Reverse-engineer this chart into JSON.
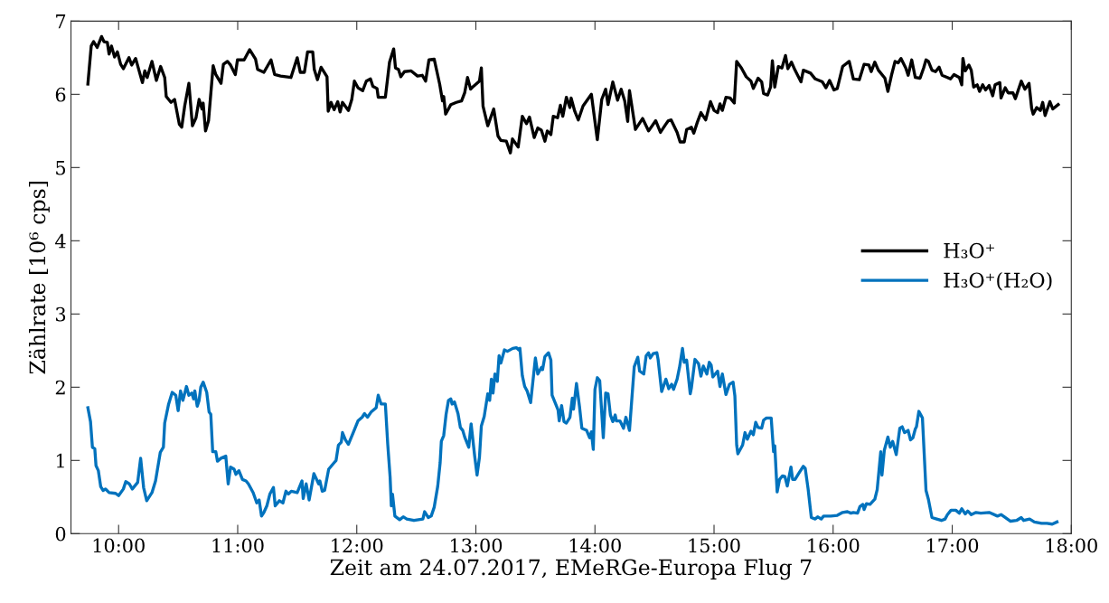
{
  "chart_data": {
    "type": "line",
    "xlabel": "Zeit am 24.07.2017, EMeRGe-Europa Flug 7",
    "ylabel": "Zählrate [10⁶ cps]",
    "xlim": [
      9.6,
      18.0
    ],
    "ylim": [
      0,
      7
    ],
    "xticks": [
      {
        "value": 10,
        "label": "10:00"
      },
      {
        "value": 11,
        "label": "11:00"
      },
      {
        "value": 12,
        "label": "12:00"
      },
      {
        "value": 13,
        "label": "13:00"
      },
      {
        "value": 14,
        "label": "14:00"
      },
      {
        "value": 15,
        "label": "15:00"
      },
      {
        "value": 16,
        "label": "16:00"
      },
      {
        "value": 17,
        "label": "17:00"
      },
      {
        "value": 18,
        "label": "18:00"
      }
    ],
    "yticks": [
      0,
      1,
      2,
      3,
      4,
      5,
      6,
      7
    ],
    "grid": false,
    "legend": "right",
    "marker": "none",
    "line_style": "solid",
    "series": [
      {
        "name": "H₃O⁺",
        "color": "#000000",
        "x": [
          9.742,
          9.77,
          9.79,
          9.82,
          9.857,
          9.877,
          9.905,
          9.92,
          9.94,
          9.966,
          9.99,
          10.017,
          10.04,
          10.087,
          10.11,
          10.143,
          10.2,
          10.22,
          10.24,
          10.28,
          10.317,
          10.353,
          10.387,
          10.4,
          10.44,
          10.47,
          10.51,
          10.53,
          10.555,
          10.59,
          10.62,
          10.65,
          10.676,
          10.7,
          10.71,
          10.73,
          10.755,
          10.794,
          10.816,
          10.86,
          10.88,
          10.914,
          10.94,
          10.98,
          10.998,
          11.054,
          11.1,
          11.15,
          11.167,
          11.22,
          11.28,
          11.31,
          11.36,
          11.447,
          11.5,
          11.526,
          11.56,
          11.587,
          11.63,
          11.643,
          11.67,
          11.7,
          11.75,
          11.76,
          11.784,
          11.81,
          11.84,
          11.86,
          11.88,
          11.93,
          11.958,
          11.98,
          12.01,
          12.05,
          12.08,
          12.115,
          12.135,
          12.17,
          12.18,
          12.24,
          12.275,
          12.31,
          12.325,
          12.35,
          12.37,
          12.4,
          12.457,
          12.51,
          12.55,
          12.578,
          12.606,
          12.65,
          12.696,
          12.72,
          12.73,
          12.746,
          12.79,
          12.836,
          12.88,
          12.906,
          12.93,
          12.956,
          12.98,
          13.03,
          13.046,
          13.06,
          13.1,
          13.15,
          13.186,
          13.21,
          13.256,
          13.29,
          13.307,
          13.355,
          13.39,
          13.425,
          13.45,
          13.49,
          13.52,
          13.55,
          13.58,
          13.6,
          13.63,
          13.65,
          13.686,
          13.71,
          13.73,
          13.76,
          13.79,
          13.8,
          13.83,
          13.86,
          13.9,
          13.97,
          14.02,
          14.057,
          14.09,
          14.11,
          14.15,
          14.19,
          14.22,
          14.25,
          14.275,
          14.29,
          14.34,
          14.4,
          14.45,
          14.51,
          14.55,
          14.59,
          14.616,
          14.64,
          14.69,
          14.715,
          14.75,
          14.77,
          14.81,
          14.83,
          14.86,
          14.89,
          14.93,
          14.97,
          15.0,
          15.03,
          15.05,
          15.07,
          15.1,
          15.135,
          15.17,
          15.19,
          15.23,
          15.27,
          15.31,
          15.33,
          15.37,
          15.4,
          15.416,
          15.45,
          15.475,
          15.49,
          15.51,
          15.54,
          15.57,
          15.6,
          15.62,
          15.65,
          15.68,
          15.73,
          15.75,
          15.81,
          15.85,
          15.91,
          15.94,
          15.97,
          16.007,
          16.035,
          16.08,
          16.135,
          16.17,
          16.22,
          16.26,
          16.3,
          16.32,
          16.35,
          16.38,
          16.435,
          16.46,
          16.49,
          16.52,
          16.546,
          16.57,
          16.61,
          16.63,
          16.66,
          16.69,
          16.73,
          16.76,
          16.78,
          16.8,
          16.83,
          16.86,
          16.89,
          16.915,
          16.96,
          16.986,
          17.015,
          17.06,
          17.08,
          17.09,
          17.11,
          17.14,
          17.16,
          17.18,
          17.21,
          17.23,
          17.256,
          17.28,
          17.31,
          17.34,
          17.36,
          17.4,
          17.41,
          17.445,
          17.47,
          17.51,
          17.53,
          17.58,
          17.61,
          17.645,
          17.667,
          17.68,
          17.71,
          17.74,
          17.76,
          17.78,
          17.82,
          17.845,
          17.89
        ],
        "values": [
          6.14,
          6.66,
          6.72,
          6.64,
          6.79,
          6.72,
          6.71,
          6.55,
          6.66,
          6.51,
          6.58,
          6.41,
          6.35,
          6.5,
          6.4,
          6.49,
          6.16,
          6.32,
          6.23,
          6.45,
          6.19,
          6.38,
          6.23,
          5.97,
          5.89,
          5.93,
          5.59,
          5.55,
          5.84,
          6.15,
          5.57,
          5.68,
          5.93,
          5.8,
          5.88,
          5.5,
          5.64,
          6.39,
          6.27,
          6.15,
          6.41,
          6.45,
          6.4,
          6.27,
          6.47,
          6.47,
          6.61,
          6.48,
          6.34,
          6.3,
          6.47,
          6.27,
          6.25,
          6.23,
          6.5,
          6.3,
          6.3,
          6.58,
          6.58,
          6.34,
          6.2,
          6.37,
          6.24,
          5.77,
          5.89,
          5.79,
          5.9,
          5.76,
          5.89,
          5.78,
          5.93,
          6.18,
          6.09,
          6.05,
          6.18,
          6.21,
          6.11,
          6.08,
          5.96,
          5.96,
          6.44,
          6.62,
          6.36,
          6.34,
          6.24,
          6.31,
          6.32,
          6.25,
          6.26,
          6.18,
          6.47,
          6.48,
          6.14,
          5.91,
          5.97,
          5.73,
          5.86,
          5.89,
          5.91,
          6.02,
          6.23,
          6.07,
          6.11,
          6.18,
          6.36,
          5.84,
          5.57,
          5.8,
          5.43,
          5.37,
          5.36,
          5.2,
          5.39,
          5.28,
          5.7,
          5.6,
          5.69,
          5.41,
          5.54,
          5.51,
          5.36,
          5.5,
          5.45,
          5.7,
          5.68,
          5.85,
          5.7,
          5.96,
          5.82,
          5.95,
          5.77,
          5.65,
          5.84,
          6.0,
          5.38,
          5.93,
          6.07,
          5.86,
          6.17,
          5.92,
          6.07,
          5.91,
          5.63,
          6.05,
          5.52,
          5.67,
          5.5,
          5.64,
          5.48,
          5.58,
          5.64,
          5.65,
          5.48,
          5.35,
          5.35,
          5.52,
          5.55,
          5.47,
          5.62,
          5.75,
          5.65,
          5.9,
          5.78,
          5.75,
          5.87,
          5.78,
          5.96,
          5.95,
          5.88,
          6.45,
          6.36,
          6.24,
          6.18,
          6.08,
          6.22,
          6.17,
          6.01,
          5.99,
          6.1,
          6.46,
          6.1,
          6.38,
          6.36,
          6.53,
          6.35,
          6.44,
          6.33,
          6.17,
          6.33,
          6.29,
          6.21,
          6.17,
          6.09,
          6.19,
          6.06,
          6.08,
          6.38,
          6.45,
          6.21,
          6.2,
          6.41,
          6.4,
          6.31,
          6.44,
          6.33,
          6.22,
          6.04,
          6.26,
          6.45,
          6.43,
          6.49,
          6.36,
          6.26,
          6.47,
          6.23,
          6.22,
          6.36,
          6.47,
          6.45,
          6.33,
          6.31,
          6.37,
          6.26,
          6.23,
          6.21,
          6.27,
          6.23,
          6.13,
          6.49,
          6.32,
          6.4,
          6.33,
          6.1,
          6.13,
          6.04,
          6.13,
          6.06,
          6.12,
          5.98,
          6.13,
          6.16,
          5.95,
          6.09,
          6.02,
          6.02,
          5.94,
          6.18,
          6.07,
          6.15,
          5.81,
          5.73,
          5.82,
          5.78,
          5.89,
          5.71,
          5.9,
          5.8,
          5.86
        ]
      },
      {
        "name": "H₃O⁺(H₂O)",
        "color": "#0072bd",
        "x": [
          9.742,
          9.764,
          9.78,
          9.8,
          9.81,
          9.83,
          9.85,
          9.87,
          9.89,
          9.92,
          9.975,
          10.0,
          10.04,
          10.06,
          10.09,
          10.115,
          10.16,
          10.185,
          10.21,
          10.236,
          10.28,
          10.31,
          10.35,
          10.376,
          10.387,
          10.42,
          10.45,
          10.48,
          10.5,
          10.52,
          10.54,
          10.57,
          10.59,
          10.614,
          10.63,
          10.64,
          10.66,
          10.676,
          10.69,
          10.71,
          10.74,
          10.76,
          10.774,
          10.79,
          10.816,
          10.83,
          10.86,
          10.9,
          10.92,
          10.94,
          10.97,
          10.985,
          11.01,
          11.04,
          11.07,
          11.09,
          11.13,
          11.16,
          11.18,
          11.2,
          11.22,
          11.245,
          11.27,
          11.3,
          11.315,
          11.35,
          11.38,
          11.405,
          11.425,
          11.45,
          11.5,
          11.54,
          11.55,
          11.575,
          11.6,
          11.64,
          11.68,
          11.69,
          11.71,
          11.73,
          11.764,
          11.81,
          11.826,
          11.846,
          11.87,
          11.88,
          11.905,
          11.93,
          11.97,
          12.01,
          12.045,
          12.065,
          12.09,
          12.12,
          12.163,
          12.18,
          12.205,
          12.24,
          12.26,
          12.28,
          12.29,
          12.3,
          12.32,
          12.36,
          12.39,
          12.42,
          12.48,
          12.555,
          12.57,
          12.6,
          12.625,
          12.65,
          12.68,
          12.7,
          12.71,
          12.73,
          12.75,
          12.77,
          12.79,
          12.8,
          12.82,
          12.85,
          12.87,
          12.89,
          12.906,
          12.94,
          12.96,
          12.99,
          13.01,
          13.03,
          13.046,
          13.07,
          13.1,
          13.116,
          13.13,
          13.144,
          13.16,
          13.18,
          13.195,
          13.21,
          13.24,
          13.265,
          13.31,
          13.34,
          13.36,
          13.37,
          13.39,
          13.41,
          13.43,
          13.46,
          13.5,
          13.52,
          13.55,
          13.56,
          13.58,
          13.61,
          13.63,
          13.64,
          13.67,
          13.69,
          13.7,
          13.72,
          13.74,
          13.76,
          13.79,
          13.81,
          13.82,
          13.845,
          13.87,
          13.89,
          13.93,
          13.955,
          13.97,
          13.986,
          14.0,
          14.02,
          14.04,
          14.07,
          14.09,
          14.11,
          14.13,
          14.15,
          14.17,
          14.18,
          14.21,
          14.24,
          14.26,
          14.29,
          14.33,
          14.36,
          14.375,
          14.41,
          14.43,
          14.45,
          14.465,
          14.49,
          14.52,
          14.53,
          14.56,
          14.596,
          14.62,
          14.644,
          14.66,
          14.69,
          14.71,
          14.735,
          14.75,
          14.77,
          14.8,
          14.81,
          14.84,
          14.87,
          14.89,
          14.91,
          14.94,
          14.96,
          14.976,
          14.99,
          15.03,
          15.05,
          15.07,
          15.1,
          15.13,
          15.16,
          15.175,
          15.19,
          15.2,
          15.24,
          15.26,
          15.28,
          15.31,
          15.33,
          15.35,
          15.37,
          15.4,
          15.416,
          15.44,
          15.48,
          15.5,
          15.51,
          15.53,
          15.55,
          15.575,
          15.595,
          15.615,
          15.646,
          15.66,
          15.68,
          15.71,
          15.75,
          15.766,
          15.79,
          15.817,
          15.85,
          15.87,
          15.9,
          15.92,
          15.98,
          16.035,
          16.08,
          16.12,
          16.15,
          16.17,
          16.205,
          16.225,
          16.25,
          16.26,
          16.28,
          16.31,
          16.35,
          16.37,
          16.385,
          16.4,
          16.41,
          16.43,
          16.46,
          16.48,
          16.5,
          16.53,
          16.56,
          16.58,
          16.6,
          16.63,
          16.65,
          16.67,
          16.69,
          16.7,
          16.72,
          16.74,
          16.75,
          16.78,
          16.8,
          16.83,
          16.87,
          16.91,
          16.94,
          16.96,
          16.99,
          17.03,
          17.06,
          17.08,
          17.11,
          17.13,
          17.16,
          17.2,
          17.24,
          17.31,
          17.38,
          17.41,
          17.445,
          17.49,
          17.54,
          17.58,
          17.6,
          17.65,
          17.69,
          17.75,
          17.795,
          17.84,
          17.88
        ],
        "values": [
          1.72,
          1.53,
          1.18,
          1.16,
          0.93,
          0.86,
          0.64,
          0.59,
          0.61,
          0.56,
          0.55,
          0.52,
          0.61,
          0.71,
          0.68,
          0.61,
          0.7,
          1.03,
          0.63,
          0.45,
          0.56,
          0.72,
          1.11,
          1.18,
          1.51,
          1.77,
          1.93,
          1.89,
          1.68,
          1.95,
          1.82,
          2.01,
          1.89,
          1.92,
          1.84,
          1.95,
          1.74,
          1.82,
          2.0,
          2.07,
          1.93,
          1.66,
          1.63,
          1.12,
          1.12,
          0.99,
          1.03,
          1.06,
          0.68,
          0.91,
          0.88,
          0.81,
          0.86,
          0.74,
          0.72,
          0.68,
          0.56,
          0.42,
          0.46,
          0.24,
          0.29,
          0.38,
          0.54,
          0.63,
          0.38,
          0.45,
          0.42,
          0.58,
          0.54,
          0.58,
          0.56,
          0.72,
          0.48,
          0.68,
          0.46,
          0.82,
          0.68,
          0.72,
          0.58,
          0.59,
          0.88,
          0.97,
          1.0,
          1.21,
          1.25,
          1.38,
          1.28,
          1.22,
          1.38,
          1.54,
          1.59,
          1.64,
          1.59,
          1.66,
          1.72,
          1.89,
          1.77,
          1.77,
          1.22,
          0.77,
          0.38,
          0.54,
          0.24,
          0.19,
          0.23,
          0.2,
          0.18,
          0.2,
          0.3,
          0.22,
          0.24,
          0.36,
          0.65,
          0.97,
          1.26,
          1.34,
          1.63,
          1.82,
          1.84,
          1.77,
          1.8,
          1.64,
          1.45,
          1.41,
          1.32,
          1.18,
          1.5,
          1.06,
          0.8,
          1.04,
          1.47,
          1.6,
          1.91,
          1.82,
          2.11,
          1.92,
          2.18,
          2.08,
          2.43,
          2.33,
          2.51,
          2.49,
          2.53,
          2.54,
          2.51,
          2.53,
          2.16,
          2.01,
          1.95,
          1.79,
          2.4,
          2.18,
          2.27,
          2.24,
          2.42,
          2.47,
          2.37,
          1.89,
          1.77,
          1.69,
          1.54,
          1.75,
          1.53,
          1.51,
          1.59,
          1.85,
          1.7,
          2.05,
          1.74,
          1.44,
          1.41,
          1.31,
          1.39,
          1.15,
          1.97,
          2.13,
          2.09,
          1.31,
          1.92,
          1.91,
          1.62,
          1.53,
          1.62,
          1.54,
          1.54,
          1.44,
          1.59,
          1.41,
          2.28,
          2.41,
          2.22,
          2.18,
          2.43,
          2.47,
          2.4,
          2.46,
          2.47,
          2.38,
          1.94,
          2.11,
          1.98,
          2.04,
          1.97,
          2.11,
          2.27,
          2.53,
          2.34,
          2.37,
          1.91,
          1.99,
          2.38,
          2.32,
          2.15,
          2.29,
          2.18,
          2.34,
          2.3,
          2.14,
          2.22,
          2.01,
          2.18,
          1.9,
          2.04,
          2.07,
          1.88,
          1.21,
          1.09,
          1.21,
          1.38,
          1.29,
          1.4,
          1.35,
          1.52,
          1.45,
          1.44,
          1.55,
          1.58,
          1.58,
          1.12,
          1.2,
          0.57,
          0.74,
          0.79,
          0.78,
          0.65,
          0.91,
          0.74,
          0.74,
          0.82,
          0.92,
          0.89,
          0.61,
          0.22,
          0.2,
          0.23,
          0.2,
          0.24,
          0.24,
          0.25,
          0.29,
          0.3,
          0.28,
          0.29,
          0.28,
          0.37,
          0.4,
          0.33,
          0.41,
          0.4,
          0.47,
          0.6,
          0.86,
          1.12,
          0.8,
          1.14,
          1.32,
          1.18,
          1.26,
          1.08,
          1.44,
          1.46,
          1.38,
          1.41,
          1.28,
          1.31,
          1.43,
          1.46,
          1.67,
          1.61,
          1.58,
          0.59,
          0.47,
          0.22,
          0.2,
          0.18,
          0.2,
          0.26,
          0.32,
          0.32,
          0.28,
          0.34,
          0.27,
          0.31,
          0.26,
          0.29,
          0.28,
          0.29,
          0.24,
          0.26,
          0.22,
          0.17,
          0.18,
          0.22,
          0.18,
          0.2,
          0.16,
          0.14,
          0.14,
          0.13,
          0.16
        ]
      }
    ]
  }
}
